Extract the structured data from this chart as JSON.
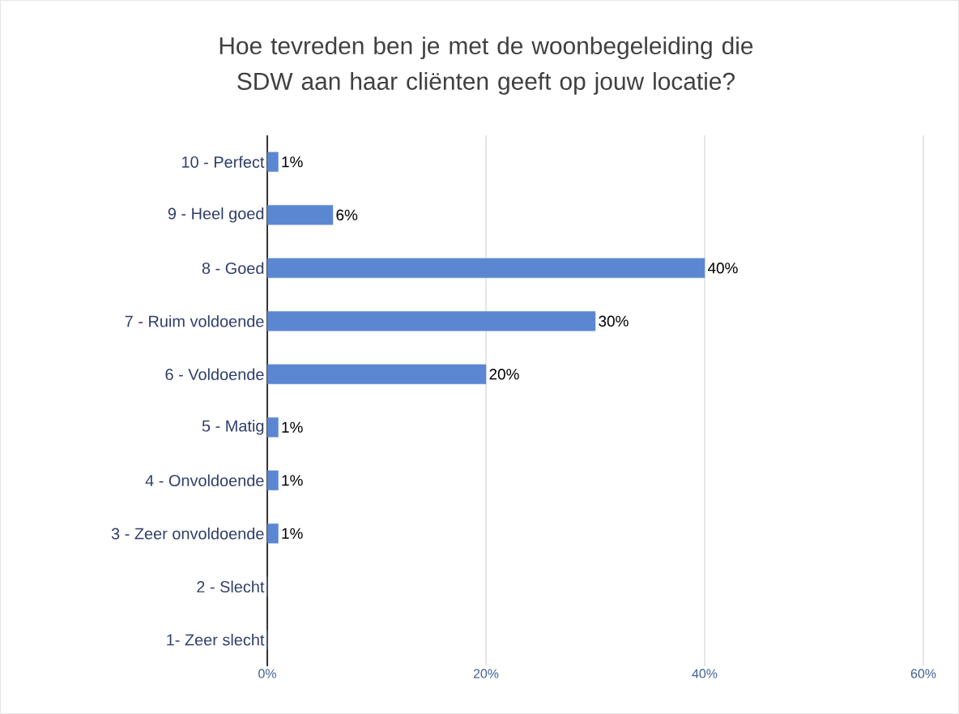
{
  "chart_data": {
    "type": "bar",
    "orientation": "horizontal",
    "title": "Hoe tevreden ben je met de woonbegeleiding die SDW aan haar cliënten geeft op jouw locatie?",
    "categories": [
      "10 - Perfect",
      "9 - Heel goed",
      "8 - Goed",
      "7 - Ruim voldoende",
      "6 - Voldoende",
      "5 - Matig",
      "4 - Onvoldoende",
      "3 - Zeer onvoldoende",
      "2 - Slecht",
      "1- Zeer slecht"
    ],
    "values": [
      1,
      6,
      40,
      30,
      20,
      1,
      1,
      1,
      0,
      0
    ],
    "value_labels": [
      "1%",
      "6%",
      "40%",
      "30%",
      "20%",
      "1%",
      "1%",
      "1%",
      null,
      null
    ],
    "color": "#5b87d2",
    "xlim": [
      0,
      60
    ],
    "xticks": [
      {
        "value": 0,
        "label": "0%"
      },
      {
        "value": 20,
        "label": "20%"
      },
      {
        "value": 40,
        "label": "40%"
      },
      {
        "value": 60,
        "label": "60%"
      }
    ],
    "grid": "x"
  }
}
